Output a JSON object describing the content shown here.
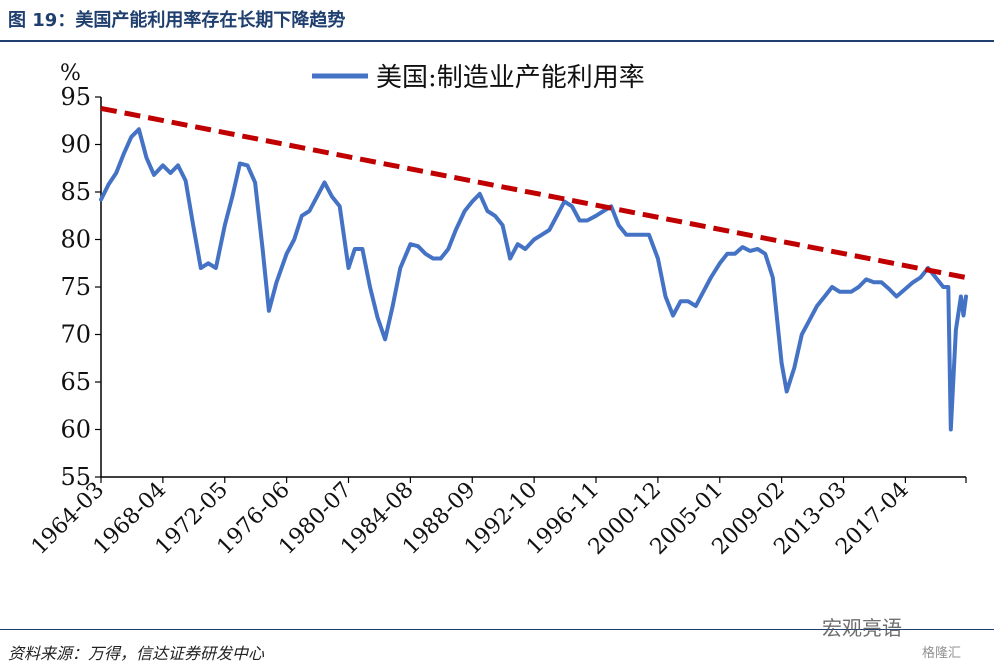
{
  "header": {
    "title": "图 19：美国产能利用率存在长期下降趋势"
  },
  "footer": {
    "source": "资料来源：万得，信达证券研发中心"
  },
  "watermark": {
    "text": "宏观亮语",
    "sub": "格隆汇"
  },
  "chart_data": {
    "type": "line",
    "unit_label": "%",
    "ylim": [
      55,
      95
    ],
    "yticks": [
      55,
      60,
      65,
      70,
      75,
      80,
      85,
      90,
      95
    ],
    "xlim": [
      "1964-03",
      "2021-04"
    ],
    "xticks": [
      "1964-03",
      "1968-04",
      "1972-05",
      "1976-06",
      "1980-07",
      "1984-08",
      "1988-09",
      "1992-10",
      "1996-11",
      "2000-12",
      "2005-01",
      "2009-02",
      "2013-03",
      "2017-04"
    ],
    "legend": {
      "position": "top-center"
    },
    "series": [
      {
        "name": "美国:制造业产能利用率",
        "color": "#4472c4",
        "points": [
          [
            "1964-03",
            84.2
          ],
          [
            "1964-09",
            85.8
          ],
          [
            "1965-03",
            87.0
          ],
          [
            "1965-09",
            89.0
          ],
          [
            "1966-03",
            90.8
          ],
          [
            "1966-09",
            91.6
          ],
          [
            "1967-03",
            88.6
          ],
          [
            "1967-09",
            86.8
          ],
          [
            "1968-04",
            87.8
          ],
          [
            "1968-10",
            87.0
          ],
          [
            "1969-04",
            87.8
          ],
          [
            "1969-10",
            86.2
          ],
          [
            "1970-04",
            81.5
          ],
          [
            "1970-10",
            77.0
          ],
          [
            "1971-04",
            77.5
          ],
          [
            "1971-10",
            77.0
          ],
          [
            "1972-05",
            81.5
          ],
          [
            "1972-11",
            84.5
          ],
          [
            "1973-05",
            88.0
          ],
          [
            "1973-11",
            87.8
          ],
          [
            "1974-05",
            86.0
          ],
          [
            "1974-11",
            79.0
          ],
          [
            "1975-04",
            72.5
          ],
          [
            "1975-10",
            75.5
          ],
          [
            "1976-06",
            78.5
          ],
          [
            "1976-12",
            80.0
          ],
          [
            "1977-06",
            82.5
          ],
          [
            "1977-12",
            83.0
          ],
          [
            "1978-06",
            84.5
          ],
          [
            "1978-12",
            86.0
          ],
          [
            "1979-06",
            84.5
          ],
          [
            "1979-12",
            83.5
          ],
          [
            "1980-07",
            77.0
          ],
          [
            "1980-12",
            79.0
          ],
          [
            "1981-06",
            79.0
          ],
          [
            "1981-12",
            75.0
          ],
          [
            "1982-06",
            71.8
          ],
          [
            "1982-12",
            69.5
          ],
          [
            "1983-06",
            73.0
          ],
          [
            "1983-12",
            77.0
          ],
          [
            "1984-08",
            79.5
          ],
          [
            "1985-02",
            79.3
          ],
          [
            "1985-08",
            78.5
          ],
          [
            "1986-02",
            78.0
          ],
          [
            "1986-08",
            78.0
          ],
          [
            "1987-02",
            79.0
          ],
          [
            "1987-08",
            81.0
          ],
          [
            "1988-03",
            83.0
          ],
          [
            "1988-09",
            84.0
          ],
          [
            "1989-03",
            84.8
          ],
          [
            "1989-09",
            83.0
          ],
          [
            "1990-03",
            82.5
          ],
          [
            "1990-09",
            81.5
          ],
          [
            "1991-03",
            78.0
          ],
          [
            "1991-09",
            79.5
          ],
          [
            "1992-03",
            79.0
          ],
          [
            "1992-10",
            80.0
          ],
          [
            "1993-04",
            80.5
          ],
          [
            "1993-10",
            81.0
          ],
          [
            "1994-04",
            82.5
          ],
          [
            "1994-10",
            84.0
          ],
          [
            "1995-04",
            83.5
          ],
          [
            "1995-10",
            82.0
          ],
          [
            "1996-04",
            82.0
          ],
          [
            "1996-11",
            82.5
          ],
          [
            "1997-05",
            83.0
          ],
          [
            "1997-11",
            83.5
          ],
          [
            "1998-05",
            81.5
          ],
          [
            "1998-11",
            80.5
          ],
          [
            "1999-05",
            80.5
          ],
          [
            "1999-11",
            80.5
          ],
          [
            "2000-05",
            80.5
          ],
          [
            "2000-12",
            78.0
          ],
          [
            "2001-06",
            74.0
          ],
          [
            "2001-12",
            72.0
          ],
          [
            "2002-06",
            73.5
          ],
          [
            "2002-12",
            73.5
          ],
          [
            "2003-06",
            73.0
          ],
          [
            "2003-12",
            74.5
          ],
          [
            "2004-06",
            76.0
          ],
          [
            "2005-01",
            77.5
          ],
          [
            "2005-07",
            78.5
          ],
          [
            "2006-01",
            78.5
          ],
          [
            "2006-07",
            79.2
          ],
          [
            "2007-01",
            78.8
          ],
          [
            "2007-07",
            79.0
          ],
          [
            "2008-01",
            78.5
          ],
          [
            "2008-07",
            76.0
          ],
          [
            "2009-02",
            67.0
          ],
          [
            "2009-06",
            64.0
          ],
          [
            "2009-12",
            66.5
          ],
          [
            "2010-06",
            70.0
          ],
          [
            "2010-12",
            71.5
          ],
          [
            "2011-06",
            73.0
          ],
          [
            "2011-12",
            74.0
          ],
          [
            "2012-06",
            75.0
          ],
          [
            "2012-12",
            74.5
          ],
          [
            "2013-03",
            74.5
          ],
          [
            "2013-09",
            74.5
          ],
          [
            "2014-03",
            75.0
          ],
          [
            "2014-09",
            75.8
          ],
          [
            "2015-03",
            75.5
          ],
          [
            "2015-09",
            75.5
          ],
          [
            "2016-03",
            74.8
          ],
          [
            "2016-09",
            74.0
          ],
          [
            "2017-04",
            74.8
          ],
          [
            "2017-10",
            75.5
          ],
          [
            "2018-04",
            76.0
          ],
          [
            "2018-10",
            77.0
          ],
          [
            "2019-04",
            76.0
          ],
          [
            "2019-10",
            75.0
          ],
          [
            "2020-02",
            75.0
          ],
          [
            "2020-04",
            60.0
          ],
          [
            "2020-08",
            70.5
          ],
          [
            "2020-12",
            74.0
          ],
          [
            "2021-02",
            72.0
          ],
          [
            "2021-04",
            74.0
          ]
        ]
      }
    ],
    "trendline": {
      "color": "#c00000",
      "style": "dashed",
      "from": [
        "1964-03",
        93.8
      ],
      "to": [
        "2021-04",
        76.0
      ]
    }
  }
}
